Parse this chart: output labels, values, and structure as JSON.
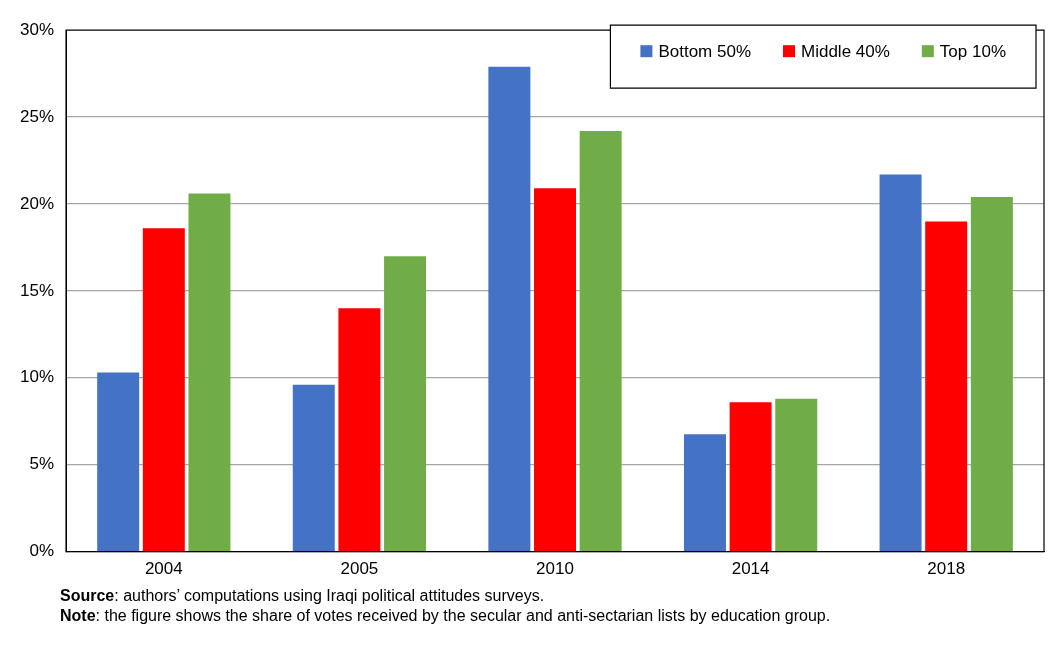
{
  "chart_data": {
    "type": "bar",
    "categories": [
      "2004",
      "2005",
      "2010",
      "2014",
      "2018"
    ],
    "series": [
      {
        "name": "Bottom 50%",
        "color": "#4472c4",
        "values": [
          10.3,
          9.6,
          27.9,
          6.75,
          21.7
        ]
      },
      {
        "name": "Middle 40%",
        "color": "#ff0000",
        "values": [
          18.6,
          14.0,
          20.9,
          8.6,
          19.0
        ]
      },
      {
        "name": "Top 10%",
        "color": "#70ad47",
        "values": [
          20.6,
          17.0,
          24.2,
          8.8,
          20.4
        ]
      }
    ],
    "ylim": [
      0,
      30
    ],
    "yticks": [
      {
        "value": 0,
        "label": "0%"
      },
      {
        "value": 5,
        "label": "5%"
      },
      {
        "value": 10,
        "label": "10%"
      },
      {
        "value": 15,
        "label": "15%"
      },
      {
        "value": 20,
        "label": "20%"
      },
      {
        "value": 25,
        "label": "25%"
      },
      {
        "value": 30,
        "label": "30%"
      }
    ],
    "grid": "y",
    "legend": "top right",
    "annotations": [
      "Source: authors’ computations using Iraqi political attitudes surveys.",
      "Note: the figure shows the share of votes received by the secular and anti-sectarian lists by education group."
    ]
  }
}
